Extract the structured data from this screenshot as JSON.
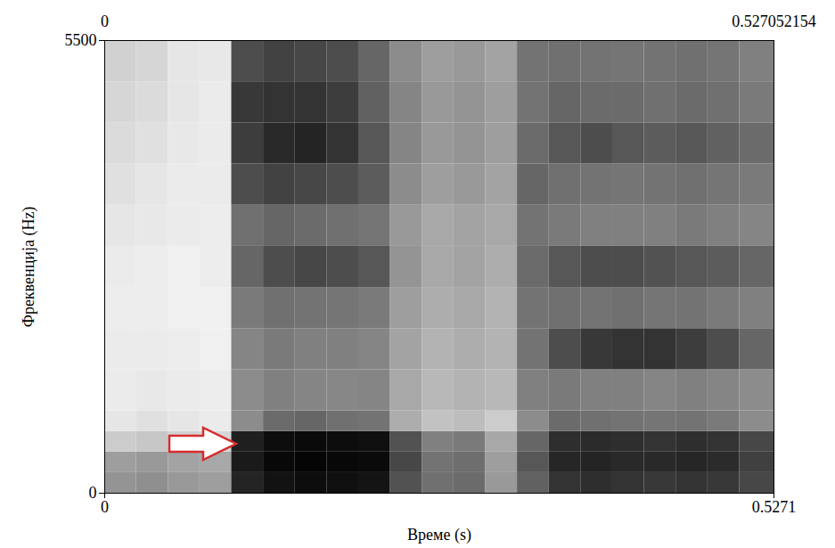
{
  "chart_data": {
    "type": "heatmap",
    "x_label": "Време (s)",
    "y_label": "Фреквенција (Hz)",
    "top_left_label": "0",
    "top_right_label": "0.527052154",
    "xlim": [
      0,
      0.527052154
    ],
    "xticks": [
      0,
      {
        "value": 0.527052154,
        "label": "0.5271"
      }
    ],
    "ylim": [
      0,
      5500
    ],
    "yticks": [
      0,
      5500
    ],
    "zlim": [
      0,
      100
    ],
    "x_edges": [
      0,
      0.025,
      0.05,
      0.075,
      0.1,
      0.125,
      0.15,
      0.175,
      0.2,
      0.225,
      0.25,
      0.275,
      0.3,
      0.325,
      0.35,
      0.375,
      0.4,
      0.425,
      0.45,
      0.475,
      0.5,
      0.527052154
    ],
    "y_edges": [
      0,
      250,
      500,
      750,
      1000,
      1500,
      2000,
      2500,
      3000,
      3500,
      4000,
      4500,
      5000,
      5500
    ],
    "z": [
      [
        42,
        44,
        40,
        38,
        86,
        93,
        95,
        94,
        92,
        68,
        56,
        58,
        40,
        62,
        80,
        82,
        80,
        78,
        80,
        78,
        72
      ],
      [
        38,
        40,
        36,
        34,
        90,
        97,
        98,
        97,
        96,
        72,
        55,
        57,
        38,
        66,
        85,
        86,
        84,
        84,
        85,
        83,
        75
      ],
      [
        20,
        22,
        18,
        16,
        88,
        95,
        96,
        95,
        94,
        68,
        50,
        52,
        34,
        60,
        82,
        83,
        82,
        80,
        82,
        80,
        72
      ],
      [
        10,
        12,
        10,
        8,
        45,
        58,
        60,
        56,
        55,
        32,
        24,
        26,
        20,
        45,
        58,
        56,
        55,
        54,
        55,
        52,
        45
      ],
      [
        8,
        9,
        8,
        7,
        45,
        50,
        48,
        47,
        48,
        34,
        28,
        30,
        28,
        50,
        52,
        50,
        50,
        48,
        50,
        48,
        45
      ],
      [
        8,
        8,
        7,
        6,
        48,
        52,
        50,
        50,
        48,
        36,
        30,
        32,
        30,
        55,
        70,
        78,
        80,
        80,
        76,
        70,
        60
      ],
      [
        7,
        7,
        6,
        6,
        52,
        56,
        55,
        54,
        52,
        38,
        32,
        34,
        30,
        55,
        56,
        55,
        56,
        54,
        55,
        52,
        50
      ],
      [
        8,
        7,
        6,
        7,
        60,
        70,
        72,
        70,
        66,
        42,
        34,
        36,
        32,
        58,
        66,
        70,
        70,
        68,
        66,
        64,
        60
      ],
      [
        10,
        9,
        8,
        7,
        56,
        60,
        58,
        56,
        54,
        40,
        34,
        36,
        34,
        55,
        52,
        50,
        50,
        50,
        52,
        50,
        48
      ],
      [
        12,
        10,
        8,
        8,
        70,
        74,
        72,
        70,
        64,
        45,
        38,
        40,
        36,
        60,
        56,
        55,
        54,
        55,
        56,
        54,
        52
      ],
      [
        14,
        12,
        9,
        8,
        76,
        84,
        86,
        80,
        66,
        48,
        40,
        42,
        38,
        58,
        66,
        70,
        66,
        64,
        66,
        62,
        58
      ],
      [
        16,
        14,
        10,
        8,
        78,
        80,
        80,
        76,
        62,
        48,
        40,
        42,
        38,
        55,
        60,
        58,
        58,
        56,
        58,
        56,
        52
      ],
      [
        18,
        16,
        10,
        9,
        70,
        74,
        72,
        70,
        60,
        45,
        38,
        40,
        36,
        55,
        56,
        55,
        54,
        55,
        56,
        54,
        50
      ]
    ]
  }
}
